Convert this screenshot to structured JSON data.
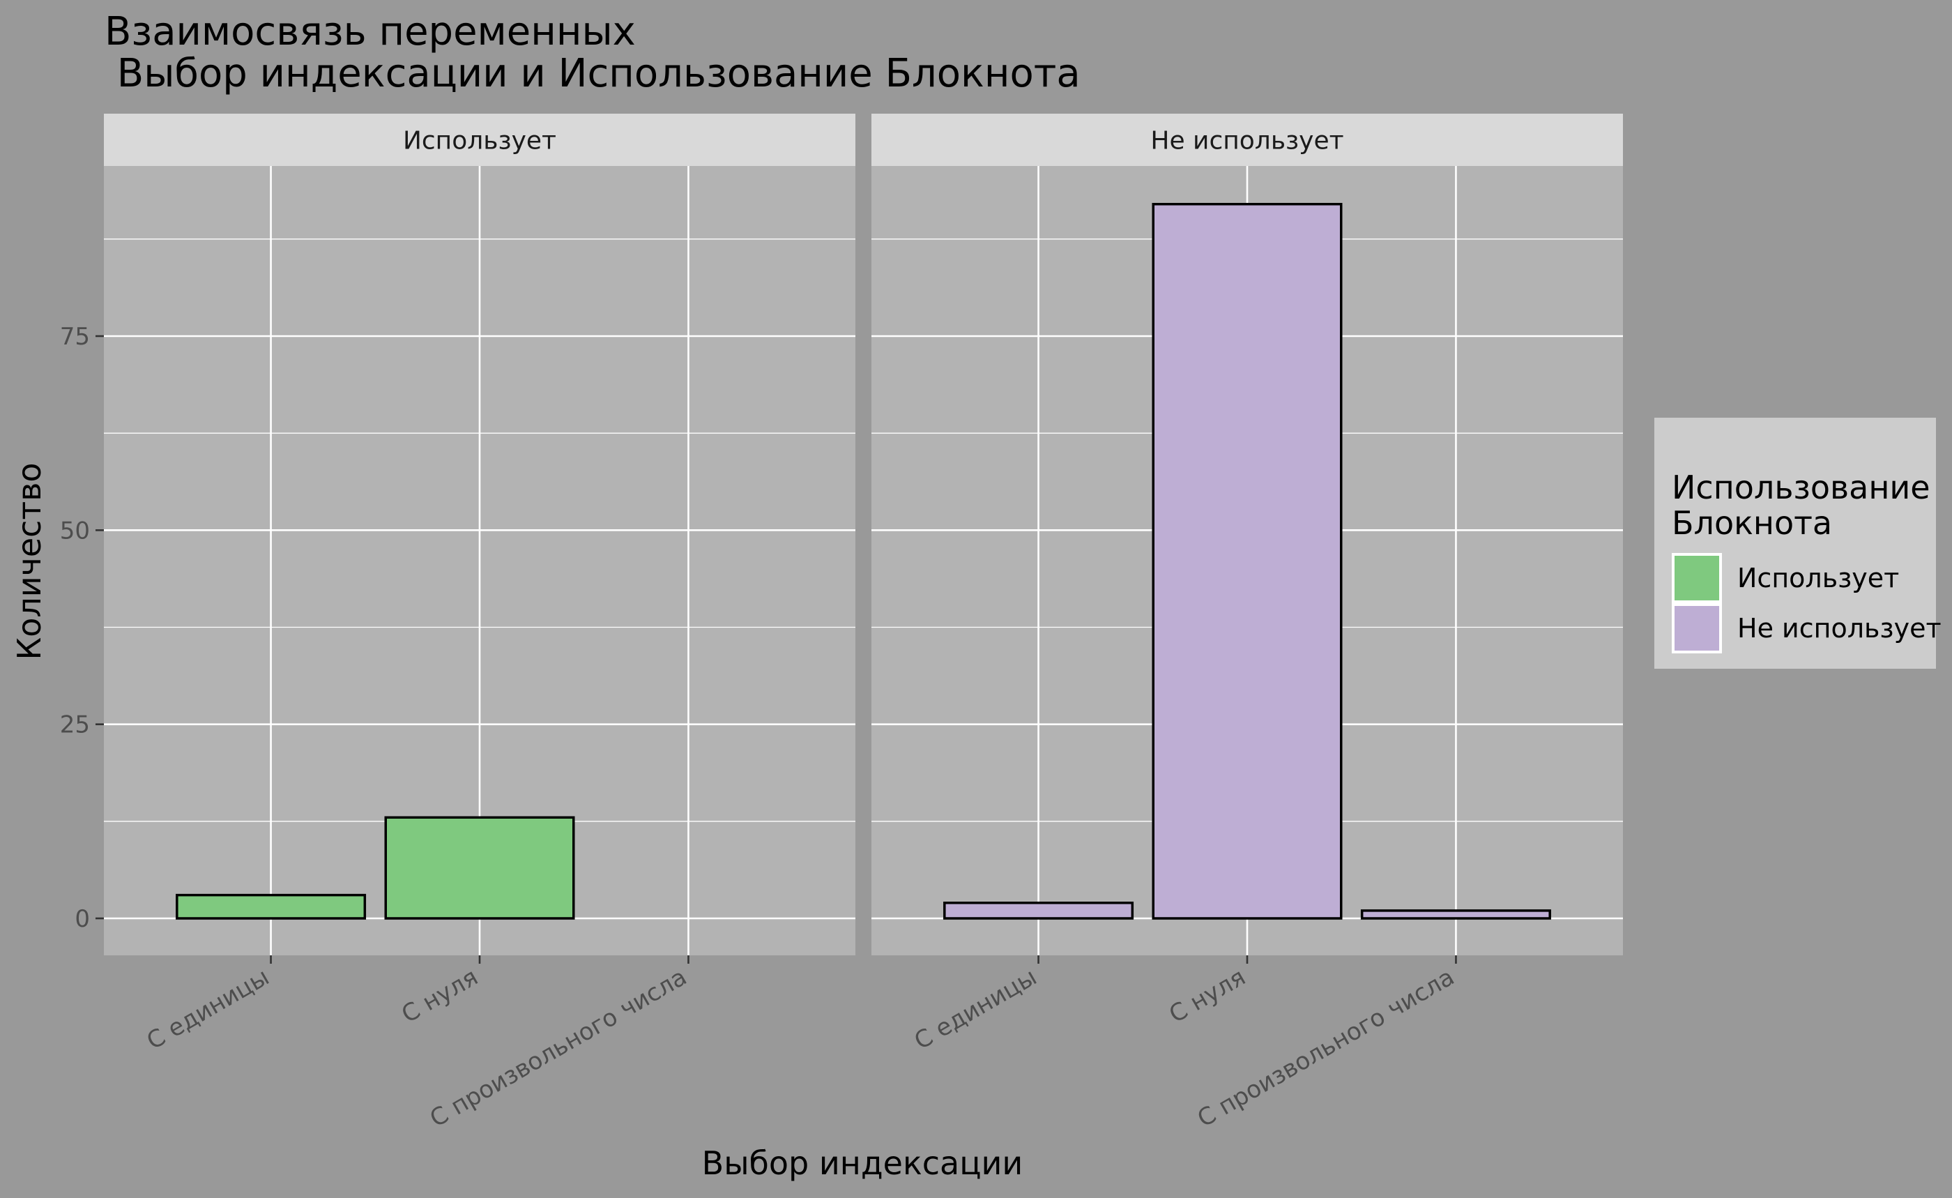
{
  "title": {
    "line1": "Взаимосвязь переменных",
    "line2": " Выбор индексации и Использование Блокнота"
  },
  "chart_data": {
    "type": "bar",
    "title": "Взаимосвязь переменных\n Выбор индексации и Использование Блокнота",
    "xlabel": "Выбор индексации",
    "ylabel": "Количество",
    "ylim": [
      0,
      97
    ],
    "yticks": [
      0,
      25,
      50,
      75
    ],
    "grid": true,
    "categories": [
      "С единицы",
      "С нуля",
      "С произвольного числа"
    ],
    "facets": [
      {
        "label": "Использует",
        "series": "Использует",
        "values": [
          3,
          13,
          0
        ]
      },
      {
        "label": "Не использует",
        "series": "Не использует",
        "values": [
          2,
          92,
          1
        ]
      }
    ],
    "legend": {
      "title_line1": "Использование",
      "title_line2": "Блокнота",
      "position": "right",
      "entries": [
        {
          "name": "Использует",
          "color": "#7fc97f"
        },
        {
          "name": "Не использует",
          "color": "#beaed4"
        }
      ]
    },
    "colors": {
      "background": "#999999",
      "panel": "#b3b3b3",
      "strip": "#d9d9d9",
      "legend_bg": "#cccccc",
      "grid": "#ffffff"
    }
  }
}
